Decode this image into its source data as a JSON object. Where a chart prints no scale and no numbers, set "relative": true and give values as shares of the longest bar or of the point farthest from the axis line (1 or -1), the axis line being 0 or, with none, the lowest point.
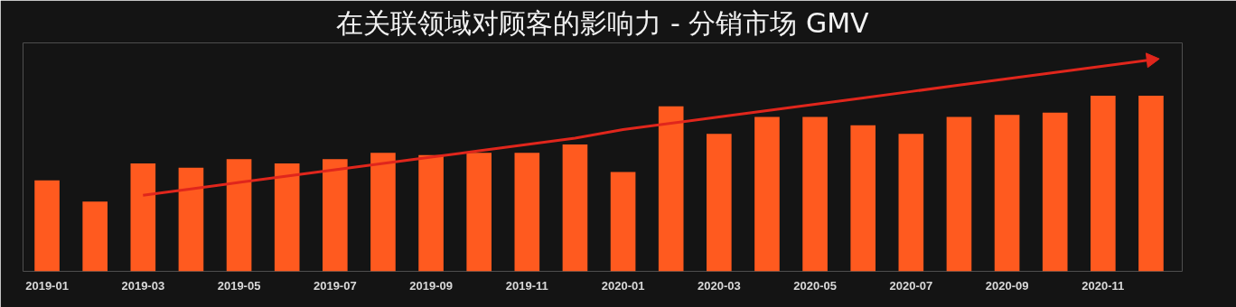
{
  "chart_data": {
    "type": "bar",
    "title": "在关联领域对顾客的影响力 - 分销市场 GMV",
    "relative": true,
    "grid": false,
    "categories": [
      "2019-01",
      null,
      "2019-03",
      null,
      "2019-05",
      null,
      "2019-07",
      null,
      "2019-09",
      null,
      "2019-11",
      null,
      "2020-01",
      null,
      "2020-03",
      null,
      "2020-05",
      null,
      "2020-07",
      null,
      "2020-09",
      null,
      "2020-11",
      null
    ],
    "series": [
      {
        "color": "#ff5a1f",
        "values": [
          0.43,
          0.33,
          0.51,
          0.49,
          0.53,
          0.51,
          0.53,
          0.56,
          0.55,
          0.56,
          0.56,
          0.6,
          0.47,
          0.78,
          0.65,
          0.73,
          0.73,
          0.69,
          0.65,
          0.73,
          0.74,
          0.75,
          0.83,
          0.83
        ]
      },
      {
        "type": "line",
        "color": "#e0261c",
        "values": [
          null,
          null,
          0.36,
          0.39,
          0.42,
          0.45,
          0.48,
          0.51,
          0.54,
          0.57,
          0.6,
          0.63,
          0.67,
          0.7,
          0.73,
          0.76,
          0.79,
          0.82,
          0.85,
          0.88,
          0.91,
          0.94,
          0.97,
          1
        ]
      }
    ]
  }
}
